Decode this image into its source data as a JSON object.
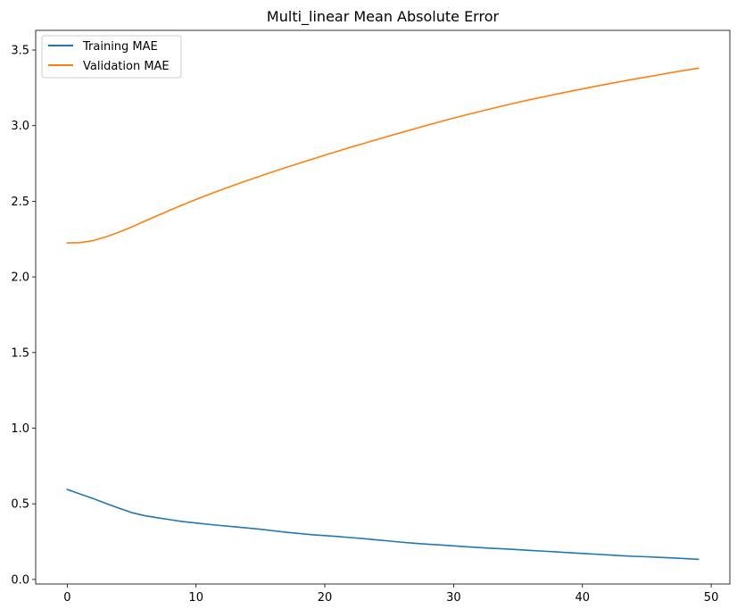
{
  "chart_data": {
    "type": "line",
    "title": "Multi_linear Mean Absolute Error",
    "xlabel": "",
    "ylabel": "",
    "xlim": [
      -2.45,
      51.45
    ],
    "ylim": [
      -0.03,
      3.63
    ],
    "xticks": [
      0,
      10,
      20,
      30,
      40,
      50
    ],
    "yticks": [
      0.0,
      0.5,
      1.0,
      1.5,
      2.0,
      2.5,
      3.0,
      3.5
    ],
    "grid": false,
    "legend_position": "top-left",
    "x": [
      0,
      1,
      2,
      3,
      4,
      5,
      6,
      7,
      8,
      9,
      10,
      11,
      12,
      13,
      14,
      15,
      16,
      17,
      18,
      19,
      20,
      21,
      22,
      23,
      24,
      25,
      26,
      27,
      28,
      29,
      30,
      31,
      32,
      33,
      34,
      35,
      36,
      37,
      38,
      39,
      40,
      41,
      42,
      43,
      44,
      45,
      46,
      47,
      48,
      49
    ],
    "series": [
      {
        "name": "Training MAE",
        "color": "#1f77b4",
        "values": [
          0.595,
          0.565,
          0.535,
          0.503,
          0.472,
          0.442,
          0.422,
          0.408,
          0.395,
          0.382,
          0.373,
          0.364,
          0.356,
          0.348,
          0.34,
          0.332,
          0.322,
          0.312,
          0.304,
          0.296,
          0.29,
          0.284,
          0.277,
          0.27,
          0.262,
          0.254,
          0.246,
          0.239,
          0.233,
          0.228,
          0.222,
          0.216,
          0.211,
          0.206,
          0.202,
          0.197,
          0.192,
          0.187,
          0.182,
          0.177,
          0.172,
          0.167,
          0.162,
          0.157,
          0.153,
          0.15,
          0.146,
          0.142,
          0.138,
          0.133
        ]
      },
      {
        "name": "Validation MAE",
        "color": "#ff7f0e",
        "values": [
          2.225,
          2.226,
          2.24,
          2.265,
          2.295,
          2.33,
          2.368,
          2.405,
          2.442,
          2.478,
          2.512,
          2.545,
          2.577,
          2.608,
          2.638,
          2.667,
          2.696,
          2.724,
          2.751,
          2.778,
          2.805,
          2.831,
          2.857,
          2.882,
          2.907,
          2.932,
          2.956,
          2.98,
          3.004,
          3.027,
          3.05,
          3.072,
          3.093,
          3.114,
          3.134,
          3.154,
          3.173,
          3.191,
          3.209,
          3.226,
          3.243,
          3.26,
          3.276,
          3.292,
          3.307,
          3.322,
          3.337,
          3.352,
          3.366,
          3.38
        ]
      }
    ]
  }
}
